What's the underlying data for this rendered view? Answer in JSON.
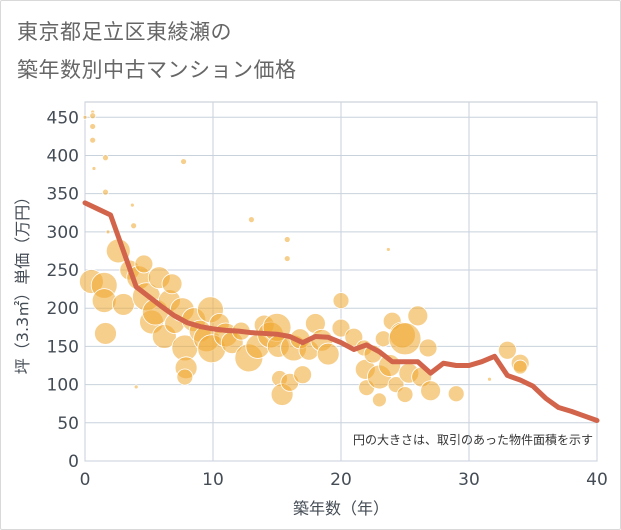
{
  "title_line1": "東京都足立区東綾瀬の",
  "title_line2": "築年数別中古マンション価格",
  "colors": {
    "bubble": "#f0a830",
    "line": "#d2644b",
    "grid": "#c8d2dc",
    "plot_border": "#c0c8d0"
  },
  "chart_data": {
    "type": "scatter",
    "xlabel": "築年数（年）",
    "ylabel": "坪（3.3㎡）単価（万円）",
    "xlim": [
      0,
      40
    ],
    "ylim": [
      0,
      470
    ],
    "x_ticks": [
      0,
      10,
      20,
      30,
      40
    ],
    "y_ticks": [
      0,
      50,
      100,
      150,
      200,
      250,
      300,
      350,
      400,
      450
    ],
    "grid": true,
    "note": "円の大きさは、取引のあった物件面積を示す",
    "series": [
      {
        "kind": "line",
        "x": [
          0,
          1,
          2,
          3,
          4,
          5,
          6,
          7,
          8,
          9,
          10,
          11,
          12,
          13,
          14,
          15,
          16,
          17,
          18,
          19,
          20,
          21,
          22,
          23,
          24,
          25,
          26,
          27,
          28,
          29,
          30,
          31,
          32,
          33,
          34,
          35,
          36,
          37,
          38,
          39,
          40
        ],
        "y": [
          338,
          330,
          322,
          275,
          228,
          215,
          202,
          190,
          181,
          176,
          173,
          171,
          170,
          168,
          167,
          166,
          163,
          155,
          163,
          162,
          155,
          146,
          152,
          143,
          130,
          130,
          130,
          115,
          128,
          125,
          125,
          130,
          137,
          112,
          106,
          98,
          82,
          70,
          65,
          59,
          53
        ]
      },
      {
        "kind": "bubble",
        "points": [
          {
            "x": 0,
            "y": 450,
            "s": 2
          },
          {
            "x": 0.6,
            "y": 457,
            "s": 2
          },
          {
            "x": 0.6,
            "y": 452,
            "s": 3
          },
          {
            "x": 0.6,
            "y": 438,
            "s": 3
          },
          {
            "x": 0.6,
            "y": 420,
            "s": 3
          },
          {
            "x": 0.7,
            "y": 383,
            "s": 2
          },
          {
            "x": 1.6,
            "y": 397,
            "s": 3
          },
          {
            "x": 1.6,
            "y": 352,
            "s": 3
          },
          {
            "x": 1.8,
            "y": 300,
            "s": 2
          },
          {
            "x": 3.7,
            "y": 335,
            "s": 2
          },
          {
            "x": 3.8,
            "y": 308,
            "s": 3
          },
          {
            "x": 7.7,
            "y": 392,
            "s": 3
          },
          {
            "x": 13,
            "y": 316,
            "s": 3
          },
          {
            "x": 15.8,
            "y": 290,
            "s": 3
          },
          {
            "x": 15.8,
            "y": 265,
            "s": 3
          },
          {
            "x": 23.7,
            "y": 277,
            "s": 2
          },
          {
            "x": 31.6,
            "y": 107,
            "s": 2
          },
          {
            "x": 4,
            "y": 97,
            "s": 2
          },
          {
            "x": 0.5,
            "y": 235,
            "s": 12
          },
          {
            "x": 1.5,
            "y": 230,
            "s": 13
          },
          {
            "x": 1.5,
            "y": 210,
            "s": 12
          },
          {
            "x": 1.6,
            "y": 167,
            "s": 11
          },
          {
            "x": 2.6,
            "y": 275,
            "s": 12
          },
          {
            "x": 3.0,
            "y": 205,
            "s": 11
          },
          {
            "x": 3.5,
            "y": 250,
            "s": 10
          },
          {
            "x": 4.2,
            "y": 240,
            "s": 12
          },
          {
            "x": 4.6,
            "y": 258,
            "s": 9
          },
          {
            "x": 4.8,
            "y": 215,
            "s": 14
          },
          {
            "x": 5.2,
            "y": 182,
            "s": 12
          },
          {
            "x": 5.5,
            "y": 195,
            "s": 13
          },
          {
            "x": 5.8,
            "y": 240,
            "s": 11
          },
          {
            "x": 6.2,
            "y": 163,
            "s": 12
          },
          {
            "x": 6.6,
            "y": 210,
            "s": 11
          },
          {
            "x": 6.8,
            "y": 232,
            "s": 10
          },
          {
            "x": 7.0,
            "y": 180,
            "s": 10
          },
          {
            "x": 7.6,
            "y": 198,
            "s": 12
          },
          {
            "x": 7.8,
            "y": 148,
            "s": 13
          },
          {
            "x": 7.9,
            "y": 122,
            "s": 11
          },
          {
            "x": 7.8,
            "y": 110,
            "s": 8
          },
          {
            "x": 8.5,
            "y": 185,
            "s": 12
          },
          {
            "x": 9.0,
            "y": 170,
            "s": 11
          },
          {
            "x": 9.5,
            "y": 160,
            "s": 13
          },
          {
            "x": 9.8,
            "y": 198,
            "s": 13
          },
          {
            "x": 9.9,
            "y": 147,
            "s": 14
          },
          {
            "x": 10.5,
            "y": 180,
            "s": 10
          },
          {
            "x": 11.0,
            "y": 165,
            "s": 12
          },
          {
            "x": 11.5,
            "y": 155,
            "s": 11
          },
          {
            "x": 12.2,
            "y": 170,
            "s": 9
          },
          {
            "x": 12.8,
            "y": 135,
            "s": 14
          },
          {
            "x": 13.5,
            "y": 150,
            "s": 12
          },
          {
            "x": 14.0,
            "y": 178,
            "s": 10
          },
          {
            "x": 14.5,
            "y": 165,
            "s": 13
          },
          {
            "x": 15.0,
            "y": 175,
            "s": 14
          },
          {
            "x": 15.1,
            "y": 150,
            "s": 11
          },
          {
            "x": 15.2,
            "y": 108,
            "s": 8
          },
          {
            "x": 15.4,
            "y": 87,
            "s": 11
          },
          {
            "x": 16.0,
            "y": 103,
            "s": 9
          },
          {
            "x": 16.3,
            "y": 148,
            "s": 13
          },
          {
            "x": 16.8,
            "y": 160,
            "s": 10
          },
          {
            "x": 17.0,
            "y": 113,
            "s": 9
          },
          {
            "x": 17.5,
            "y": 145,
            "s": 10
          },
          {
            "x": 18.0,
            "y": 180,
            "s": 10
          },
          {
            "x": 18.5,
            "y": 158,
            "s": 11
          },
          {
            "x": 19.0,
            "y": 140,
            "s": 11
          },
          {
            "x": 20.0,
            "y": 210,
            "s": 8
          },
          {
            "x": 20.0,
            "y": 174,
            "s": 9
          },
          {
            "x": 21.0,
            "y": 162,
            "s": 9
          },
          {
            "x": 21.8,
            "y": 148,
            "s": 8
          },
          {
            "x": 21.9,
            "y": 120,
            "s": 10
          },
          {
            "x": 22.0,
            "y": 96,
            "s": 8
          },
          {
            "x": 22.5,
            "y": 140,
            "s": 9
          },
          {
            "x": 23.0,
            "y": 110,
            "s": 12
          },
          {
            "x": 23.0,
            "y": 80,
            "s": 7
          },
          {
            "x": 23.3,
            "y": 160,
            "s": 8
          },
          {
            "x": 23.8,
            "y": 125,
            "s": 11
          },
          {
            "x": 24.0,
            "y": 183,
            "s": 9
          },
          {
            "x": 24.3,
            "y": 100,
            "s": 8
          },
          {
            "x": 24.8,
            "y": 165,
            "s": 13
          },
          {
            "x": 25.0,
            "y": 160,
            "s": 16
          },
          {
            "x": 25.0,
            "y": 87,
            "s": 8
          },
          {
            "x": 25.3,
            "y": 115,
            "s": 10
          },
          {
            "x": 26.0,
            "y": 190,
            "s": 10
          },
          {
            "x": 26.3,
            "y": 110,
            "s": 10
          },
          {
            "x": 26.8,
            "y": 148,
            "s": 9
          },
          {
            "x": 27.0,
            "y": 92,
            "s": 10
          },
          {
            "x": 29.0,
            "y": 88,
            "s": 8
          },
          {
            "x": 33.0,
            "y": 145,
            "s": 9
          },
          {
            "x": 34.0,
            "y": 128,
            "s": 9
          },
          {
            "x": 34.0,
            "y": 123,
            "s": 7
          }
        ]
      }
    ]
  }
}
